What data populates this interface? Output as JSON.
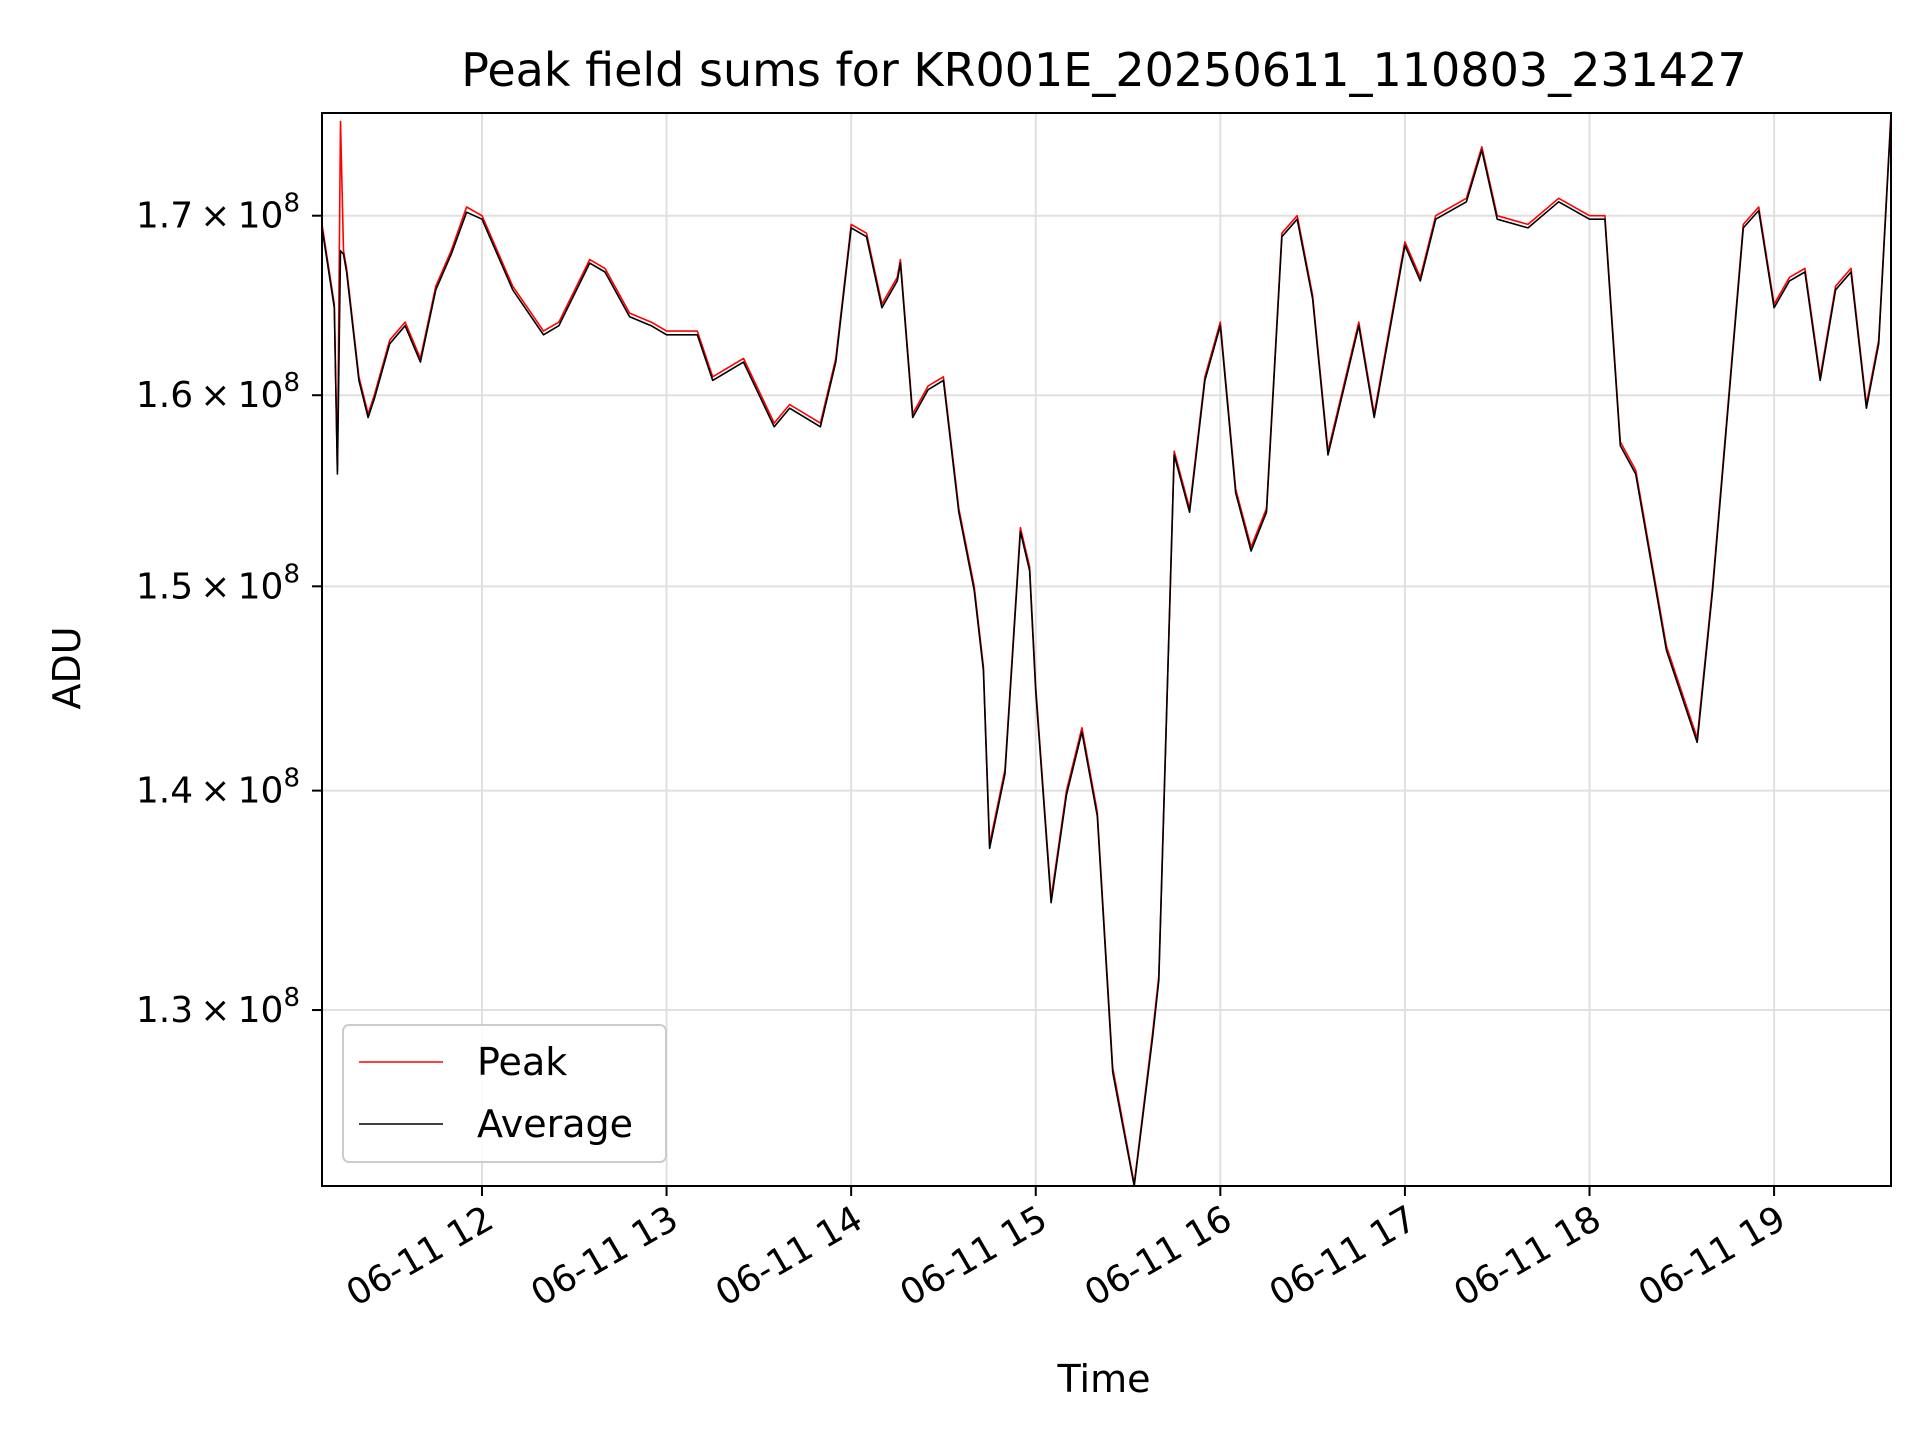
{
  "chart_data": {
    "type": "line",
    "title": "Peak field sums for KR001E_20250611_110803_231427",
    "xlabel": "Time",
    "ylabel": "ADU",
    "y_scale": "log",
    "ylim": [
      122500000,
      176000000
    ],
    "xlim": [
      "2025-06-11 11:08",
      "2025-06-11 19:38"
    ],
    "grid": true,
    "legend_position": "lower-left",
    "x_ticks": [
      {
        "x": "2025-06-11 12:00",
        "label": "06-11 12"
      },
      {
        "x": "2025-06-11 13:00",
        "label": "06-11 13"
      },
      {
        "x": "2025-06-11 14:00",
        "label": "06-11 14"
      },
      {
        "x": "2025-06-11 15:00",
        "label": "06-11 15"
      },
      {
        "x": "2025-06-11 16:00",
        "label": "06-11 16"
      },
      {
        "x": "2025-06-11 17:00",
        "label": "06-11 17"
      },
      {
        "x": "2025-06-11 18:00",
        "label": "06-11 18"
      },
      {
        "x": "2025-06-11 19:00",
        "label": "06-11 19"
      }
    ],
    "y_ticks": [
      {
        "value": 130000000,
        "mantissa": "1.3",
        "times": "×",
        "base": "10",
        "exp": "8"
      },
      {
        "value": 140000000,
        "mantissa": "1.4",
        "times": "×",
        "base": "10",
        "exp": "8"
      },
      {
        "value": 150000000,
        "mantissa": "1.5",
        "times": "×",
        "base": "10",
        "exp": "8"
      },
      {
        "value": 160000000,
        "mantissa": "1.6",
        "times": "×",
        "base": "10",
        "exp": "8"
      },
      {
        "value": 170000000,
        "mantissa": "1.7",
        "times": "×",
        "base": "10",
        "exp": "8"
      }
    ],
    "series": [
      {
        "name": "Peak",
        "color": "#ff0000",
        "x": [
          "2025-06-11 11:08",
          "2025-06-11 11:12",
          "2025-06-11 11:13",
          "2025-06-11 11:14",
          "2025-06-11 11:15",
          "2025-06-11 11:16",
          "2025-06-11 11:20",
          "2025-06-11 11:23",
          "2025-06-11 11:25",
          "2025-06-11 11:30",
          "2025-06-11 11:35",
          "2025-06-11 11:40",
          "2025-06-11 11:45",
          "2025-06-11 11:50",
          "2025-06-11 11:55",
          "2025-06-11 12:00",
          "2025-06-11 12:10",
          "2025-06-11 12:20",
          "2025-06-11 12:25",
          "2025-06-11 12:35",
          "2025-06-11 12:40",
          "2025-06-11 12:48",
          "2025-06-11 12:55",
          "2025-06-11 13:00",
          "2025-06-11 13:10",
          "2025-06-11 13:15",
          "2025-06-11 13:25",
          "2025-06-11 13:35",
          "2025-06-11 13:40",
          "2025-06-11 13:50",
          "2025-06-11 13:55",
          "2025-06-11 14:00",
          "2025-06-11 14:05",
          "2025-06-11 14:10",
          "2025-06-11 14:15",
          "2025-06-11 14:16",
          "2025-06-11 14:20",
          "2025-06-11 14:25",
          "2025-06-11 14:30",
          "2025-06-11 14:35",
          "2025-06-11 14:40",
          "2025-06-11 14:43",
          "2025-06-11 14:45",
          "2025-06-11 14:50",
          "2025-06-11 14:55",
          "2025-06-11 14:58",
          "2025-06-11 15:00",
          "2025-06-11 15:05",
          "2025-06-11 15:10",
          "2025-06-11 15:15",
          "2025-06-11 15:20",
          "2025-06-11 15:25",
          "2025-06-11 15:32",
          "2025-06-11 15:38",
          "2025-06-11 15:40",
          "2025-06-11 15:45",
          "2025-06-11 15:50",
          "2025-06-11 15:55",
          "2025-06-11 16:00",
          "2025-06-11 16:05",
          "2025-06-11 16:10",
          "2025-06-11 16:15",
          "2025-06-11 16:20",
          "2025-06-11 16:25",
          "2025-06-11 16:30",
          "2025-06-11 16:35",
          "2025-06-11 16:45",
          "2025-06-11 16:50",
          "2025-06-11 17:00",
          "2025-06-11 17:05",
          "2025-06-11 17:10",
          "2025-06-11 17:20",
          "2025-06-11 17:25",
          "2025-06-11 17:30",
          "2025-06-11 17:40",
          "2025-06-11 17:50",
          "2025-06-11 18:00",
          "2025-06-11 18:05",
          "2025-06-11 18:10",
          "2025-06-11 18:15",
          "2025-06-11 18:25",
          "2025-06-11 18:35",
          "2025-06-11 18:40",
          "2025-06-11 18:50",
          "2025-06-11 18:55",
          "2025-06-11 19:00",
          "2025-06-11 19:05",
          "2025-06-11 19:10",
          "2025-06-11 19:15",
          "2025-06-11 19:20",
          "2025-06-11 19:25",
          "2025-06-11 19:30",
          "2025-06-11 19:34",
          "2025-06-11 19:38"
        ],
        "y": [
          169500000,
          165000000,
          156000000,
          175500000,
          168000000,
          167000000,
          161000000,
          159000000,
          160000000,
          163000000,
          164000000,
          162000000,
          166000000,
          168000000,
          170500000,
          170000000,
          166000000,
          163500000,
          164000000,
          167500000,
          167000000,
          164500000,
          164000000,
          163500000,
          163500000,
          161000000,
          162000000,
          158500000,
          159500000,
          158500000,
          162000000,
          169500000,
          169000000,
          165000000,
          166500000,
          167500000,
          159000000,
          160500000,
          161000000,
          154000000,
          150000000,
          146000000,
          137500000,
          141000000,
          153000000,
          151000000,
          145000000,
          135000000,
          140000000,
          143000000,
          139000000,
          127500000,
          122600000,
          129000000,
          131500000,
          157000000,
          154000000,
          161000000,
          164000000,
          155000000,
          152000000,
          154000000,
          169000000,
          170000000,
          165500000,
          157000000,
          164000000,
          159000000,
          168500000,
          166500000,
          170000000,
          171000000,
          174000000,
          170000000,
          169500000,
          171000000,
          170000000,
          170000000,
          157500000,
          156000000,
          147000000,
          142500000,
          150000000,
          169500000,
          170500000,
          165000000,
          166500000,
          167000000,
          161000000,
          166000000,
          167000000,
          159500000,
          163000000,
          176000000
        ]
      },
      {
        "name": "Average",
        "color": "#000000",
        "x": [
          "2025-06-11 11:08",
          "2025-06-11 11:12",
          "2025-06-11 11:13",
          "2025-06-11 11:14",
          "2025-06-11 11:15",
          "2025-06-11 11:16",
          "2025-06-11 11:20",
          "2025-06-11 11:23",
          "2025-06-11 11:25",
          "2025-06-11 11:30",
          "2025-06-11 11:35",
          "2025-06-11 11:40",
          "2025-06-11 11:45",
          "2025-06-11 11:50",
          "2025-06-11 11:55",
          "2025-06-11 12:00",
          "2025-06-11 12:10",
          "2025-06-11 12:20",
          "2025-06-11 12:25",
          "2025-06-11 12:35",
          "2025-06-11 12:40",
          "2025-06-11 12:48",
          "2025-06-11 12:55",
          "2025-06-11 13:00",
          "2025-06-11 13:10",
          "2025-06-11 13:15",
          "2025-06-11 13:25",
          "2025-06-11 13:35",
          "2025-06-11 13:40",
          "2025-06-11 13:50",
          "2025-06-11 13:55",
          "2025-06-11 14:00",
          "2025-06-11 14:05",
          "2025-06-11 14:10",
          "2025-06-11 14:15",
          "2025-06-11 14:16",
          "2025-06-11 14:20",
          "2025-06-11 14:25",
          "2025-06-11 14:30",
          "2025-06-11 14:35",
          "2025-06-11 14:40",
          "2025-06-11 14:43",
          "2025-06-11 14:45",
          "2025-06-11 14:50",
          "2025-06-11 14:55",
          "2025-06-11 14:58",
          "2025-06-11 15:00",
          "2025-06-11 15:05",
          "2025-06-11 15:10",
          "2025-06-11 15:15",
          "2025-06-11 15:20",
          "2025-06-11 15:25",
          "2025-06-11 15:32",
          "2025-06-11 15:38",
          "2025-06-11 15:40",
          "2025-06-11 15:45",
          "2025-06-11 15:50",
          "2025-06-11 15:55",
          "2025-06-11 16:00",
          "2025-06-11 16:05",
          "2025-06-11 16:10",
          "2025-06-11 16:15",
          "2025-06-11 16:20",
          "2025-06-11 16:25",
          "2025-06-11 16:30",
          "2025-06-11 16:35",
          "2025-06-11 16:45",
          "2025-06-11 16:50",
          "2025-06-11 17:00",
          "2025-06-11 17:05",
          "2025-06-11 17:10",
          "2025-06-11 17:20",
          "2025-06-11 17:25",
          "2025-06-11 17:30",
          "2025-06-11 17:40",
          "2025-06-11 17:50",
          "2025-06-11 18:00",
          "2025-06-11 18:05",
          "2025-06-11 18:10",
          "2025-06-11 18:15",
          "2025-06-11 18:25",
          "2025-06-11 18:35",
          "2025-06-11 18:40",
          "2025-06-11 18:50",
          "2025-06-11 18:55",
          "2025-06-11 19:00",
          "2025-06-11 19:05",
          "2025-06-11 19:10",
          "2025-06-11 19:15",
          "2025-06-11 19:20",
          "2025-06-11 19:25",
          "2025-06-11 19:30",
          "2025-06-11 19:34",
          "2025-06-11 19:38"
        ],
        "y": [
          169300000,
          164800000,
          155800000,
          168000000,
          167800000,
          166800000,
          160800000,
          158800000,
          159800000,
          162800000,
          163800000,
          161800000,
          165800000,
          167800000,
          170200000,
          169800000,
          165800000,
          163300000,
          163800000,
          167300000,
          166800000,
          164300000,
          163800000,
          163300000,
          163300000,
          160800000,
          161800000,
          158300000,
          159300000,
          158300000,
          161800000,
          169300000,
          168800000,
          164800000,
          166300000,
          167300000,
          158800000,
          160300000,
          160800000,
          153800000,
          149800000,
          145800000,
          137300000,
          140800000,
          152800000,
          150800000,
          144800000,
          134800000,
          139800000,
          142800000,
          138800000,
          127300000,
          122500000,
          128800000,
          131300000,
          156800000,
          153800000,
          160800000,
          163800000,
          154800000,
          151800000,
          153800000,
          168800000,
          169800000,
          165300000,
          156800000,
          163800000,
          158800000,
          168300000,
          166300000,
          169800000,
          170800000,
          173800000,
          169800000,
          169300000,
          170800000,
          169800000,
          169800000,
          157300000,
          155800000,
          146800000,
          142300000,
          149800000,
          169300000,
          170300000,
          164800000,
          166300000,
          166800000,
          160800000,
          165800000,
          166800000,
          159300000,
          162800000,
          175800000
        ]
      }
    ]
  }
}
